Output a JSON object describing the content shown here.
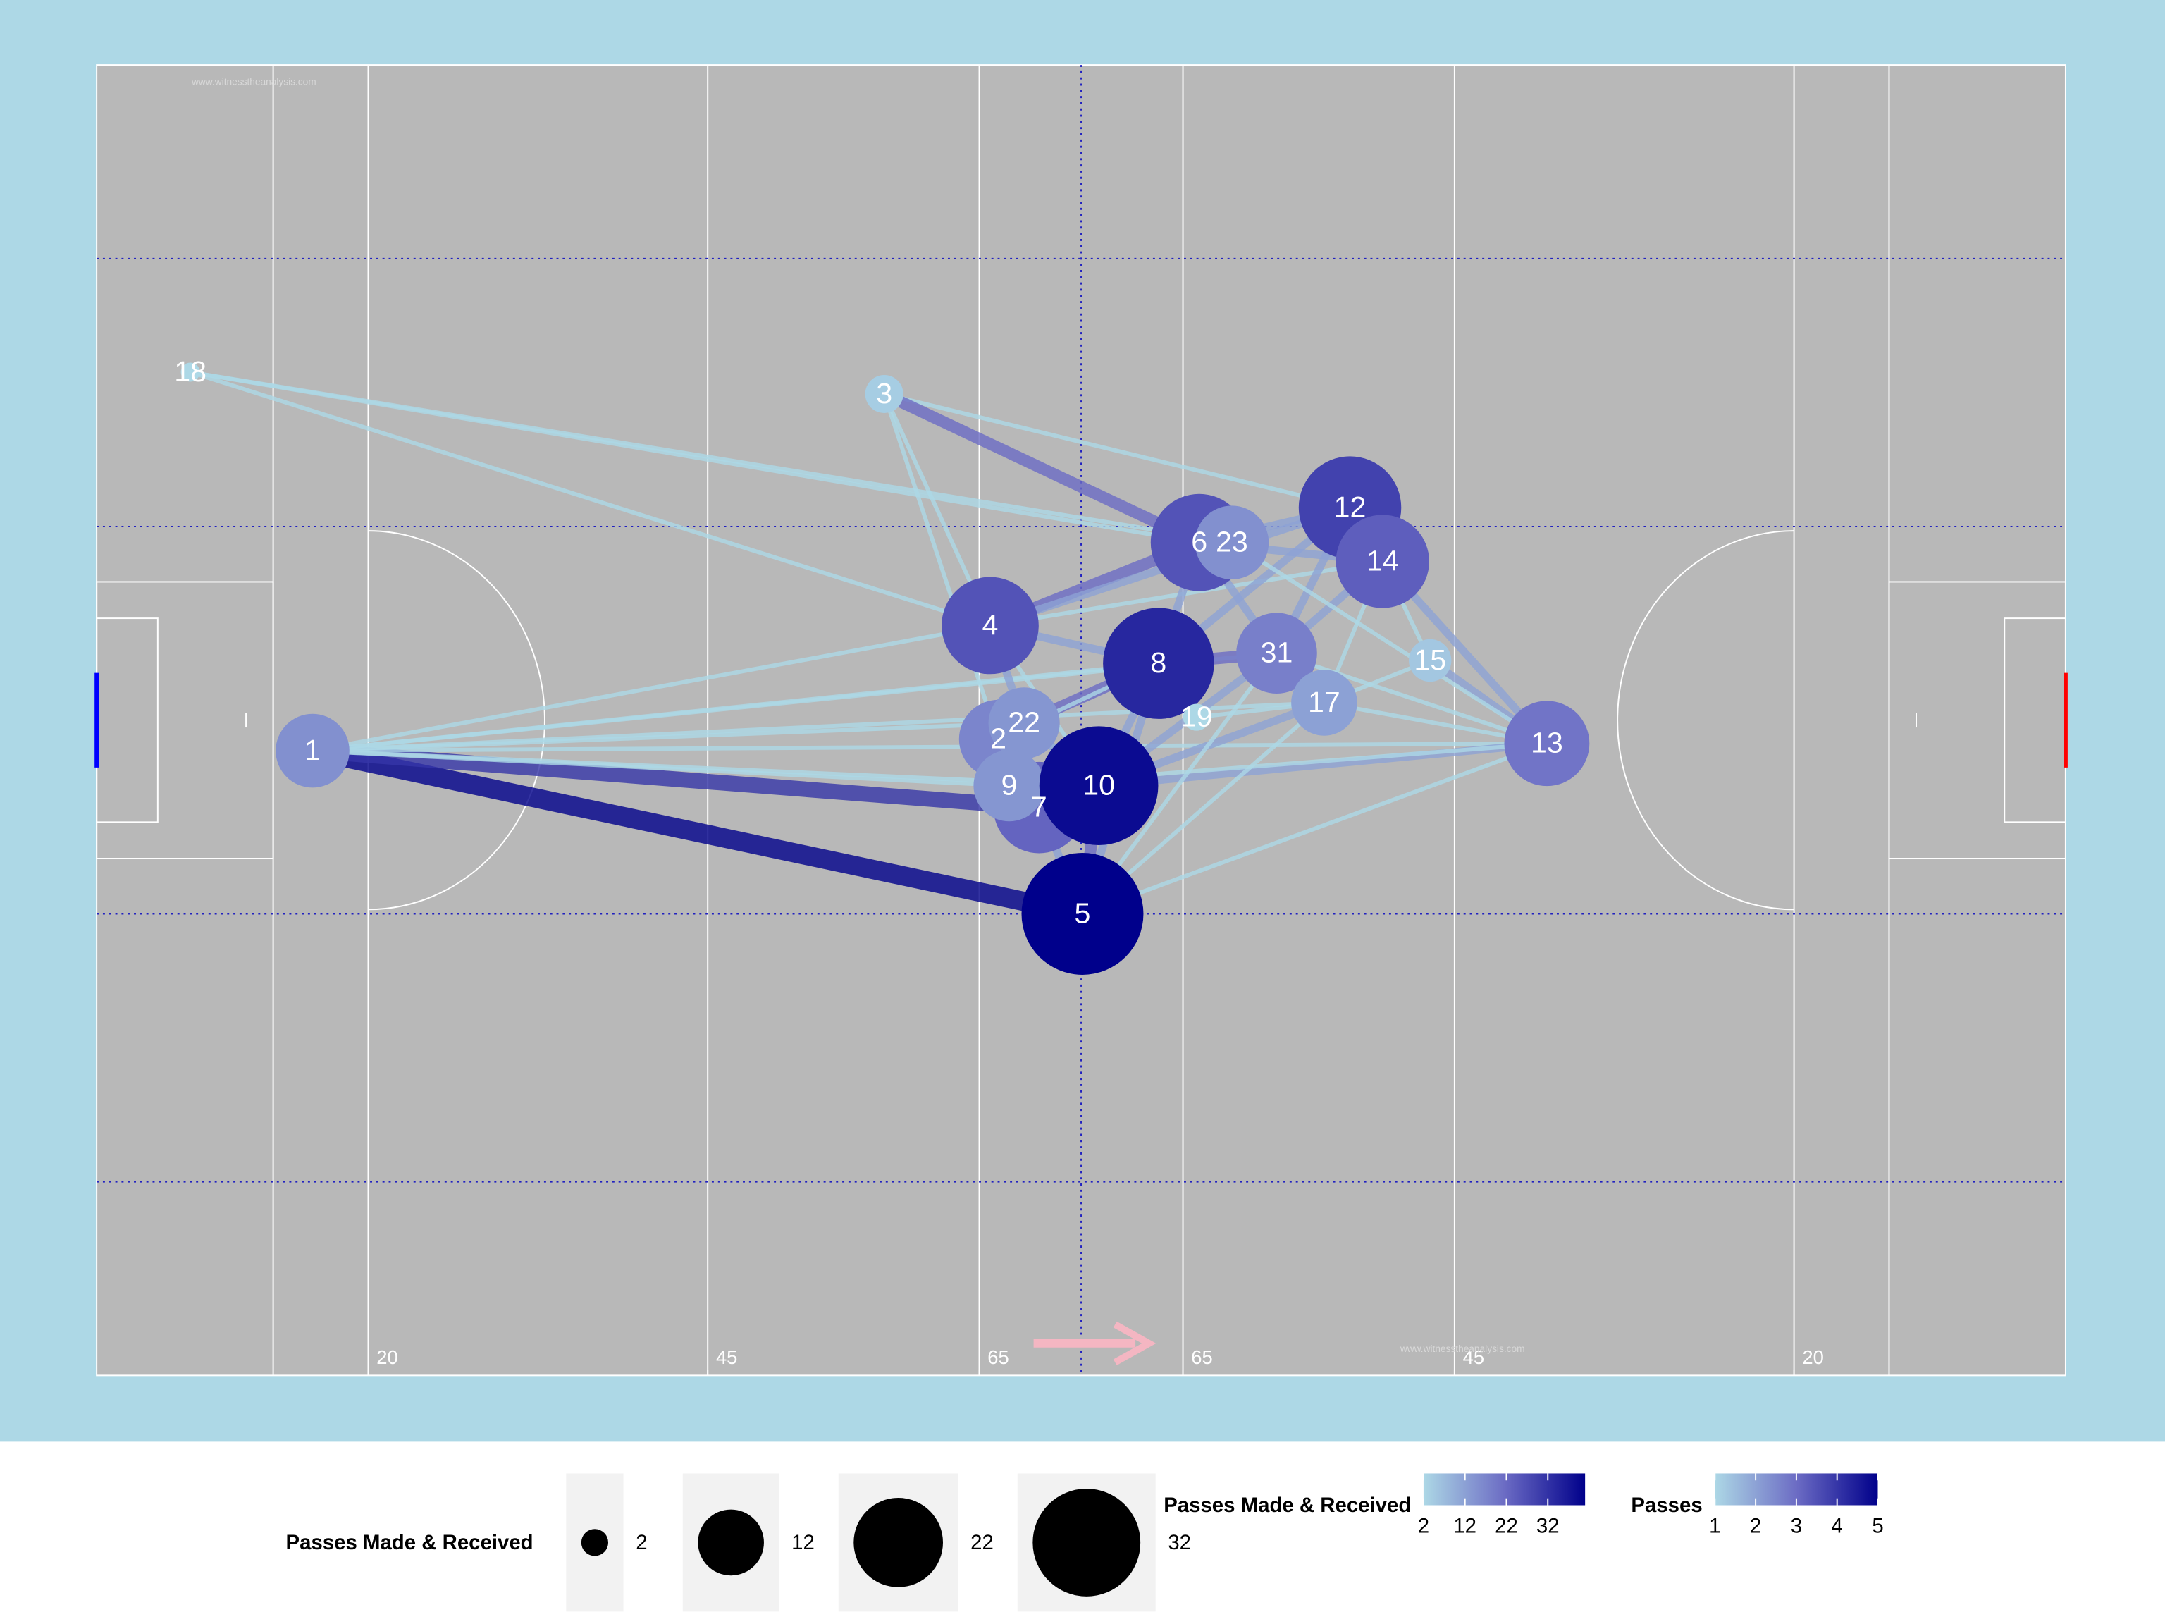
{
  "chart_data": {
    "type": "network",
    "pitch": {
      "length": 145,
      "width": 90,
      "line_labels": [
        {
          "value": 20,
          "label": "20"
        },
        {
          "value": 45,
          "label": "45"
        },
        {
          "value": 65,
          "label": "65"
        },
        {
          "value": 80,
          "label": "65"
        },
        {
          "value": 100,
          "label": "45"
        },
        {
          "value": 125,
          "label": "20"
        }
      ],
      "guides_y": [
        13.3,
        31.7,
        58.3,
        76.7
      ],
      "watermark": "www.witnesstheanalysis.com"
    },
    "colors": {
      "low": "#add8e6",
      "mid": "#6c6cc4",
      "high": "#00008b"
    },
    "nodes": [
      {
        "label": "1",
        "x": 15.9,
        "y": 47.1,
        "size": 15
      },
      {
        "label": "18",
        "x": 6.9,
        "y": 21.1,
        "size": 1
      },
      {
        "label": "3",
        "x": 58.0,
        "y": 22.6,
        "size": 4
      },
      {
        "label": "4",
        "x": 65.8,
        "y": 38.5,
        "size": 26
      },
      {
        "label": "6",
        "x": 81.2,
        "y": 32.8,
        "size": 26
      },
      {
        "label": "23",
        "x": 83.6,
        "y": 32.8,
        "size": 15
      },
      {
        "label": "12",
        "x": 92.3,
        "y": 30.4,
        "size": 29
      },
      {
        "label": "14",
        "x": 94.7,
        "y": 34.1,
        "size": 24
      },
      {
        "label": "8",
        "x": 78.2,
        "y": 41.1,
        "size": 34
      },
      {
        "label": "31",
        "x": 86.9,
        "y": 40.4,
        "size": 18
      },
      {
        "label": "15",
        "x": 98.2,
        "y": 40.9,
        "size": 5
      },
      {
        "label": "17",
        "x": 90.4,
        "y": 43.8,
        "size": 12
      },
      {
        "label": "19",
        "x": 81.0,
        "y": 44.8,
        "size": 2
      },
      {
        "label": "13",
        "x": 106.8,
        "y": 46.6,
        "size": 20
      },
      {
        "label": "2",
        "x": 66.4,
        "y": 46.3,
        "size": 17
      },
      {
        "label": "22",
        "x": 68.3,
        "y": 45.2,
        "size": 14
      },
      {
        "label": "7",
        "x": 69.4,
        "y": 51.0,
        "size": 23
      },
      {
        "label": "9",
        "x": 67.2,
        "y": 49.5,
        "size": 14
      },
      {
        "label": "10",
        "x": 73.8,
        "y": 49.5,
        "size": 39
      },
      {
        "label": "5",
        "x": 72.6,
        "y": 58.3,
        "size": 41
      }
    ],
    "edges": [
      {
        "from": "1",
        "to": "5",
        "passes": 5
      },
      {
        "from": "1",
        "to": "7",
        "passes": 4
      },
      {
        "from": "1",
        "to": "10",
        "passes": 1
      },
      {
        "from": "1",
        "to": "8",
        "passes": 1
      },
      {
        "from": "1",
        "to": "4",
        "passes": 1
      },
      {
        "from": "1",
        "to": "22",
        "passes": 1
      },
      {
        "from": "1",
        "to": "13",
        "passes": 1
      },
      {
        "from": "1",
        "to": "31",
        "passes": 1
      },
      {
        "from": "1",
        "to": "17",
        "passes": 1
      },
      {
        "from": "1",
        "to": "9",
        "passes": 1
      },
      {
        "from": "18",
        "to": "6",
        "passes": 1
      },
      {
        "from": "18",
        "to": "23",
        "passes": 1
      },
      {
        "from": "18",
        "to": "4",
        "passes": 1
      },
      {
        "from": "3",
        "to": "4",
        "passes": 1
      },
      {
        "from": "3",
        "to": "12",
        "passes": 1
      },
      {
        "from": "3",
        "to": "6",
        "passes": 3
      },
      {
        "from": "3",
        "to": "2",
        "passes": 1
      },
      {
        "from": "4",
        "to": "6",
        "passes": 3
      },
      {
        "from": "4",
        "to": "8",
        "passes": 2
      },
      {
        "from": "4",
        "to": "22",
        "passes": 2
      },
      {
        "from": "4",
        "to": "14",
        "passes": 1
      },
      {
        "from": "4",
        "to": "12",
        "passes": 2
      },
      {
        "from": "4",
        "to": "10",
        "passes": 1
      },
      {
        "from": "6",
        "to": "8",
        "passes": 2
      },
      {
        "from": "6",
        "to": "12",
        "passes": 2
      },
      {
        "from": "6",
        "to": "31",
        "passes": 2
      },
      {
        "from": "6",
        "to": "14",
        "passes": 2
      },
      {
        "from": "12",
        "to": "14",
        "passes": 2
      },
      {
        "from": "12",
        "to": "31",
        "passes": 2
      },
      {
        "from": "12",
        "to": "8",
        "passes": 2
      },
      {
        "from": "14",
        "to": "13",
        "passes": 2
      },
      {
        "from": "14",
        "to": "31",
        "passes": 2
      },
      {
        "from": "14",
        "to": "15",
        "passes": 1
      },
      {
        "from": "14",
        "to": "17",
        "passes": 1
      },
      {
        "from": "8",
        "to": "31",
        "passes": 3
      },
      {
        "from": "8",
        "to": "22",
        "passes": 3
      },
      {
        "from": "8",
        "to": "10",
        "passes": 2
      },
      {
        "from": "10",
        "to": "13",
        "passes": 2
      },
      {
        "from": "10",
        "to": "31",
        "passes": 2
      },
      {
        "from": "10",
        "to": "17",
        "passes": 2
      },
      {
        "from": "10",
        "to": "5",
        "passes": 3
      },
      {
        "from": "10",
        "to": "7",
        "passes": 2
      },
      {
        "from": "5",
        "to": "13",
        "passes": 1
      },
      {
        "from": "5",
        "to": "8",
        "passes": 2
      },
      {
        "from": "5",
        "to": "17",
        "passes": 1
      },
      {
        "from": "5",
        "to": "31",
        "passes": 1
      },
      {
        "from": "13",
        "to": "15",
        "passes": 2
      },
      {
        "from": "13",
        "to": "17",
        "passes": 1
      },
      {
        "from": "13",
        "to": "31",
        "passes": 1
      },
      {
        "from": "13",
        "to": "9",
        "passes": 1
      },
      {
        "from": "13",
        "to": "23",
        "passes": 1
      },
      {
        "from": "17",
        "to": "15",
        "passes": 1
      },
      {
        "from": "17",
        "to": "19",
        "passes": 1
      },
      {
        "from": "9",
        "to": "10",
        "passes": 2
      },
      {
        "from": "2",
        "to": "8",
        "passes": 1
      },
      {
        "from": "22",
        "to": "10",
        "passes": 2
      },
      {
        "from": "7",
        "to": "5",
        "passes": 2
      }
    ],
    "size_legend": {
      "title": "Passes Made & Received",
      "ticks": [
        2,
        12,
        22,
        32
      ]
    },
    "color_legend": {
      "title": "Passes Made & Received",
      "lim": [
        2,
        41
      ],
      "ticks": [
        2,
        12,
        22,
        32
      ]
    },
    "edge_legend": {
      "title": "Passes",
      "lim": [
        1,
        5
      ],
      "ticks": [
        1,
        2,
        3,
        4,
        5
      ]
    }
  }
}
